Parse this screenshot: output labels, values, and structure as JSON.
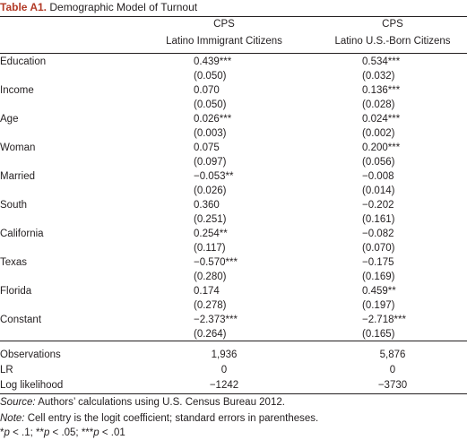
{
  "caption": {
    "label": "Table A1.",
    "title": " Demographic Model of Turnout"
  },
  "columns": [
    {
      "line1": "CPS",
      "line2": "Latino Immigrant Citizens"
    },
    {
      "line1": "CPS",
      "line2": "Latino U.S.-Born Citizens"
    }
  ],
  "rows": [
    {
      "label": "Education",
      "coef": [
        "0.439***",
        "0.534***"
      ],
      "se": [
        "(0.050)",
        "(0.032)"
      ]
    },
    {
      "label": "Income",
      "coef": [
        "0.070",
        "0.136***"
      ],
      "se": [
        "(0.050)",
        "(0.028)"
      ]
    },
    {
      "label": "Age",
      "coef": [
        "0.026***",
        "0.024***"
      ],
      "se": [
        "(0.003)",
        "(0.002)"
      ]
    },
    {
      "label": "Woman",
      "coef": [
        "0.075",
        "0.200***"
      ],
      "se": [
        "(0.097)",
        "(0.056)"
      ]
    },
    {
      "label": "Married",
      "coef": [
        "−0.053**",
        "−0.008"
      ],
      "se": [
        "(0.026)",
        "(0.014)"
      ]
    },
    {
      "label": "South",
      "coef": [
        "0.360",
        "−0.202"
      ],
      "se": [
        "(0.251)",
        "(0.161)"
      ]
    },
    {
      "label": "California",
      "coef": [
        "0.254**",
        "−0.082"
      ],
      "se": [
        "(0.117)",
        "(0.070)"
      ]
    },
    {
      "label": "Texas",
      "coef": [
        "−0.570***",
        "−0.175"
      ],
      "se": [
        "(0.280)",
        "(0.169)"
      ]
    },
    {
      "label": "Florida",
      "coef": [
        "0.174",
        "0.459**"
      ],
      "se": [
        "(0.278)",
        "(0.197)"
      ]
    },
    {
      "label": "Constant",
      "coef": [
        "−2.373***",
        "−2.718***"
      ],
      "se": [
        "(0.264)",
        "(0.165)"
      ]
    }
  ],
  "stats": [
    {
      "label": "Observations",
      "values": [
        "1,936",
        "5,876"
      ]
    },
    {
      "label": "LR",
      "values": [
        "0",
        "0"
      ]
    },
    {
      "label": "Log likelihood",
      "values": [
        "−1242",
        "−3730"
      ]
    }
  ],
  "notes": {
    "source_label": "Source:",
    "source_text": " Authors’ calculations using U.S. Census Bureau 2012.",
    "note_label": "Note:",
    "note_text": " Cell entry is the logit coefficient; standard errors in parentheses.",
    "sig_p1": "p",
    "sig_t1": " < .1; **",
    "sig_p2": "p",
    "sig_t2": " < .05; ***",
    "sig_p3": "p",
    "sig_t3": " < .01",
    "sig_star": "*"
  }
}
